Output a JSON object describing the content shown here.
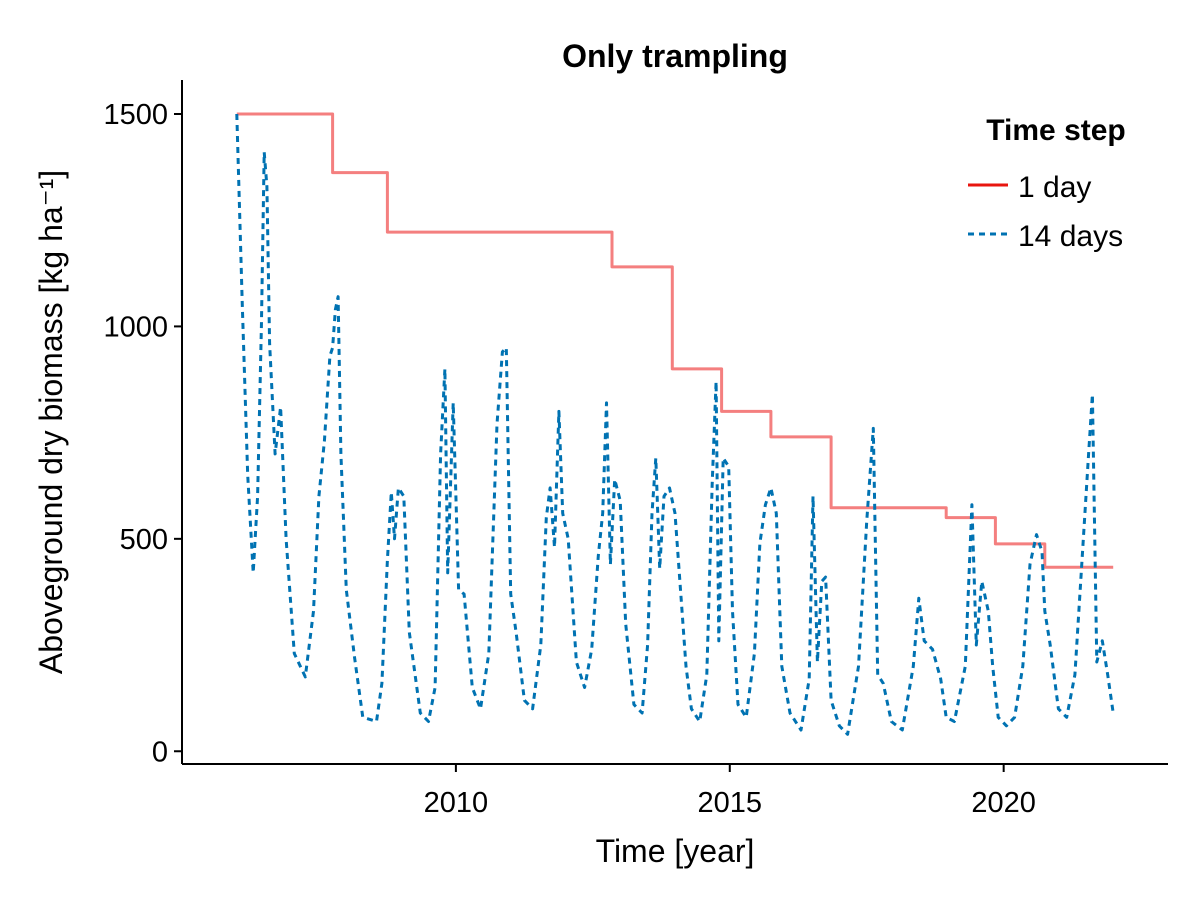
{
  "chart_data": {
    "type": "line",
    "title": "Only trampling",
    "xlabel": "Time [year]",
    "ylabel": "Aboveground dry biomass [kg ha⁻¹]",
    "xlim": [
      2005,
      2023
    ],
    "ylim": [
      -30,
      1580
    ],
    "x_ticks": [
      2010,
      2015,
      2020
    ],
    "y_ticks": [
      0,
      500,
      1000,
      1500
    ],
    "grid": false,
    "legend": {
      "title": "Time step",
      "placement": "top-right"
    },
    "series": [
      {
        "name": "1 day",
        "color": "#f47f7f",
        "style": "solid",
        "points": [
          [
            2006.0,
            1500
          ],
          [
            2007.75,
            1500
          ],
          [
            2007.75,
            1362
          ],
          [
            2008.75,
            1362
          ],
          [
            2008.75,
            1222
          ],
          [
            2012.85,
            1222
          ],
          [
            2012.85,
            1140
          ],
          [
            2013.95,
            1140
          ],
          [
            2013.95,
            900
          ],
          [
            2014.85,
            900
          ],
          [
            2014.85,
            800
          ],
          [
            2015.75,
            800
          ],
          [
            2015.75,
            740
          ],
          [
            2016.85,
            740
          ],
          [
            2016.85,
            573
          ],
          [
            2018.95,
            573
          ],
          [
            2018.95,
            550
          ],
          [
            2019.85,
            550
          ],
          [
            2019.85,
            488
          ],
          [
            2020.75,
            488
          ],
          [
            2020.75,
            433
          ],
          [
            2022.0,
            433
          ]
        ]
      },
      {
        "name": "14 days",
        "color": "#0072b2",
        "style": "dashed",
        "points": [
          [
            2006.0,
            1500
          ],
          [
            2006.1,
            1050
          ],
          [
            2006.2,
            650
          ],
          [
            2006.3,
            420
          ],
          [
            2006.38,
            600
          ],
          [
            2006.45,
            1000
          ],
          [
            2006.5,
            1410
          ],
          [
            2006.55,
            1330
          ],
          [
            2006.6,
            960
          ],
          [
            2006.7,
            700
          ],
          [
            2006.8,
            810
          ],
          [
            2006.9,
            500
          ],
          [
            2007.05,
            230
          ],
          [
            2007.25,
            175
          ],
          [
            2007.4,
            330
          ],
          [
            2007.5,
            600
          ],
          [
            2007.6,
            730
          ],
          [
            2007.7,
            930
          ],
          [
            2007.75,
            950
          ],
          [
            2007.8,
            1040
          ],
          [
            2007.85,
            1070
          ],
          [
            2007.9,
            700
          ],
          [
            2008.0,
            380
          ],
          [
            2008.15,
            220
          ],
          [
            2008.3,
            80
          ],
          [
            2008.55,
            70
          ],
          [
            2008.65,
            160
          ],
          [
            2008.75,
            450
          ],
          [
            2008.82,
            610
          ],
          [
            2008.88,
            500
          ],
          [
            2008.95,
            620
          ],
          [
            2009.05,
            600
          ],
          [
            2009.15,
            280
          ],
          [
            2009.35,
            90
          ],
          [
            2009.5,
            70
          ],
          [
            2009.62,
            150
          ],
          [
            2009.72,
            700
          ],
          [
            2009.8,
            900
          ],
          [
            2009.85,
            420
          ],
          [
            2009.95,
            820
          ],
          [
            2010.05,
            380
          ],
          [
            2010.15,
            370
          ],
          [
            2010.3,
            150
          ],
          [
            2010.45,
            100
          ],
          [
            2010.6,
            230
          ],
          [
            2010.75,
            770
          ],
          [
            2010.85,
            940
          ],
          [
            2010.92,
            950
          ],
          [
            2011.0,
            370
          ],
          [
            2011.1,
            280
          ],
          [
            2011.25,
            120
          ],
          [
            2011.4,
            100
          ],
          [
            2011.55,
            250
          ],
          [
            2011.65,
            550
          ],
          [
            2011.72,
            620
          ],
          [
            2011.8,
            480
          ],
          [
            2011.88,
            800
          ],
          [
            2011.95,
            560
          ],
          [
            2012.05,
            500
          ],
          [
            2012.2,
            210
          ],
          [
            2012.35,
            150
          ],
          [
            2012.48,
            240
          ],
          [
            2012.6,
            460
          ],
          [
            2012.68,
            560
          ],
          [
            2012.75,
            820
          ],
          [
            2012.82,
            440
          ],
          [
            2012.9,
            640
          ],
          [
            2013.0,
            590
          ],
          [
            2013.1,
            300
          ],
          [
            2013.25,
            110
          ],
          [
            2013.4,
            90
          ],
          [
            2013.5,
            250
          ],
          [
            2013.58,
            560
          ],
          [
            2013.65,
            690
          ],
          [
            2013.72,
            430
          ],
          [
            2013.8,
            600
          ],
          [
            2013.9,
            620
          ],
          [
            2014.0,
            560
          ],
          [
            2014.1,
            380
          ],
          [
            2014.2,
            200
          ],
          [
            2014.3,
            100
          ],
          [
            2014.45,
            70
          ],
          [
            2014.58,
            180
          ],
          [
            2014.68,
            630
          ],
          [
            2014.75,
            870
          ],
          [
            2014.8,
            260
          ],
          [
            2014.88,
            690
          ],
          [
            2014.98,
            670
          ],
          [
            2015.05,
            330
          ],
          [
            2015.15,
            110
          ],
          [
            2015.3,
            80
          ],
          [
            2015.45,
            230
          ],
          [
            2015.55,
            490
          ],
          [
            2015.65,
            580
          ],
          [
            2015.75,
            620
          ],
          [
            2015.85,
            560
          ],
          [
            2015.95,
            200
          ],
          [
            2016.1,
            90
          ],
          [
            2016.3,
            50
          ],
          [
            2016.45,
            170
          ],
          [
            2016.52,
            600
          ],
          [
            2016.6,
            210
          ],
          [
            2016.68,
            400
          ],
          [
            2016.75,
            410
          ],
          [
            2016.85,
            120
          ],
          [
            2017.0,
            60
          ],
          [
            2017.15,
            40
          ],
          [
            2017.35,
            200
          ],
          [
            2017.5,
            540
          ],
          [
            2017.62,
            760
          ],
          [
            2017.7,
            180
          ],
          [
            2017.8,
            160
          ],
          [
            2017.95,
            70
          ],
          [
            2018.15,
            50
          ],
          [
            2018.35,
            200
          ],
          [
            2018.45,
            360
          ],
          [
            2018.55,
            260
          ],
          [
            2018.7,
            240
          ],
          [
            2018.85,
            170
          ],
          [
            2018.95,
            80
          ],
          [
            2019.1,
            70
          ],
          [
            2019.3,
            200
          ],
          [
            2019.42,
            580
          ],
          [
            2019.5,
            250
          ],
          [
            2019.6,
            400
          ],
          [
            2019.72,
            330
          ],
          [
            2019.8,
            200
          ],
          [
            2019.9,
            80
          ],
          [
            2020.05,
            60
          ],
          [
            2020.2,
            80
          ],
          [
            2020.35,
            200
          ],
          [
            2020.48,
            440
          ],
          [
            2020.6,
            510
          ],
          [
            2020.7,
            470
          ],
          [
            2020.75,
            330
          ],
          [
            2020.85,
            250
          ],
          [
            2021.0,
            100
          ],
          [
            2021.15,
            80
          ],
          [
            2021.3,
            180
          ],
          [
            2021.42,
            430
          ],
          [
            2021.55,
            700
          ],
          [
            2021.62,
            840
          ],
          [
            2021.7,
            210
          ],
          [
            2021.8,
            260
          ],
          [
            2021.9,
            180
          ],
          [
            2022.0,
            90
          ]
        ]
      }
    ]
  }
}
